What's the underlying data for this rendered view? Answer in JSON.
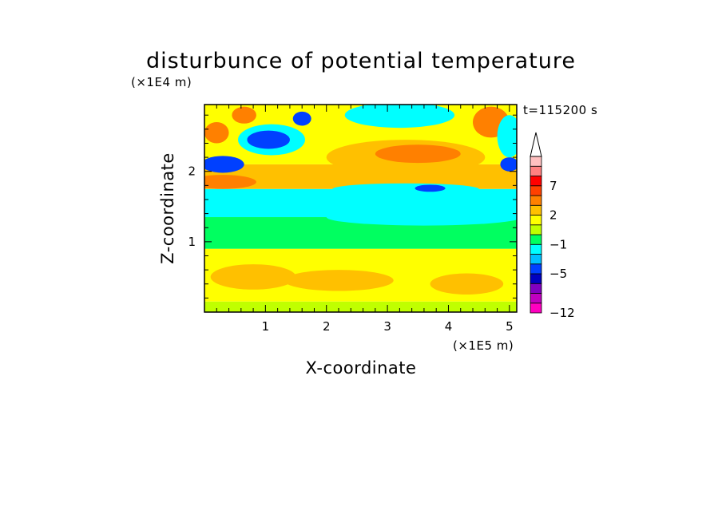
{
  "chart_data": {
    "type": "heatmap",
    "title": "disturbunce of potential temperature",
    "time_label": "t=115200 s",
    "xlabel": "X-coordinate",
    "ylabel": "Z-coordinate",
    "x_scale_label": "(×1E5 m)",
    "y_scale_label": "(×1E4 m)",
    "xlim": [
      0,
      5.12
    ],
    "ylim": [
      0,
      2.95
    ],
    "x_ticks": [
      1,
      2,
      3,
      4,
      5
    ],
    "y_ticks": [
      1,
      2
    ],
    "colorbar": {
      "levels": [
        -12,
        -11,
        -9,
        -7,
        -5,
        -4,
        -3,
        -1,
        0,
        1,
        2,
        3,
        5,
        7,
        9,
        11
      ],
      "tick_labels": [
        "7",
        "2",
        "−1",
        "−5",
        "−12"
      ],
      "tick_values": [
        7,
        2,
        -1,
        -5,
        -12
      ],
      "colors": [
        "#ff00c0",
        "#c000c0",
        "#8000c0",
        "#0000c0",
        "#0040ff",
        "#00c0ff",
        "#00ffff",
        "#00ff60",
        "#c0ff00",
        "#ffff00",
        "#ffc000",
        "#ff8000",
        "#ff4000",
        "#ff0000",
        "#ff8080",
        "#ffc0c0"
      ],
      "extend": "max"
    },
    "layers": [
      {
        "z": [
          0.0,
          0.15
        ],
        "value": 0.5
      },
      {
        "z": [
          0.15,
          0.9
        ],
        "value": 1.5
      },
      {
        "z": [
          0.9,
          1.35
        ],
        "value": -0.5
      },
      {
        "z": [
          1.35,
          1.75
        ],
        "value": -1.5
      },
      {
        "z": [
          1.75,
          2.1
        ],
        "value": 2.5
      },
      {
        "z": [
          2.1,
          2.95
        ],
        "value": 1.5
      }
    ],
    "features": [
      {
        "x": 0.8,
        "z": 0.5,
        "rx": 0.7,
        "rz": 0.18,
        "value": 2.5
      },
      {
        "x": 2.2,
        "z": 0.45,
        "rx": 0.9,
        "rz": 0.15,
        "value": 2.5
      },
      {
        "x": 4.3,
        "z": 0.4,
        "rx": 0.6,
        "rz": 0.15,
        "value": 2.5
      },
      {
        "x": 3.6,
        "z": 1.35,
        "rx": 1.6,
        "rz": 0.12,
        "value": -1.5
      },
      {
        "x": 3.3,
        "z": 2.2,
        "rx": 1.3,
        "rz": 0.25,
        "value": 2.5
      },
      {
        "x": 3.5,
        "z": 2.25,
        "rx": 0.7,
        "rz": 0.13,
        "value": 4
      },
      {
        "x": 3.3,
        "z": 1.75,
        "rx": 1.2,
        "rz": 0.08,
        "value": -1.5
      },
      {
        "x": 3.7,
        "z": 1.76,
        "rx": 0.25,
        "rz": 0.05,
        "value": -4.5
      },
      {
        "x": 3.2,
        "z": 2.8,
        "rx": 0.9,
        "rz": 0.18,
        "value": -1.5
      },
      {
        "x": 1.1,
        "z": 2.45,
        "rx": 0.55,
        "rz": 0.22,
        "value": -1.5
      },
      {
        "x": 1.05,
        "z": 2.45,
        "rx": 0.35,
        "rz": 0.13,
        "value": -4.5
      },
      {
        "x": 1.6,
        "z": 2.75,
        "rx": 0.15,
        "rz": 0.1,
        "value": -4.5
      },
      {
        "x": 0.3,
        "z": 2.1,
        "rx": 0.35,
        "rz": 0.12,
        "value": -4.5
      },
      {
        "x": 0.3,
        "z": 1.85,
        "rx": 0.55,
        "rz": 0.1,
        "value": 4
      },
      {
        "x": 0.2,
        "z": 2.55,
        "rx": 0.2,
        "rz": 0.15,
        "value": 4
      },
      {
        "x": 0.65,
        "z": 2.8,
        "rx": 0.2,
        "rz": 0.12,
        "value": 4
      },
      {
        "x": 5.0,
        "z": 2.1,
        "rx": 0.15,
        "rz": 0.1,
        "value": -4.5
      },
      {
        "x": 4.7,
        "z": 2.7,
        "rx": 0.3,
        "rz": 0.22,
        "value": 4
      },
      {
        "x": 5.0,
        "z": 2.5,
        "rx": 0.2,
        "rz": 0.3,
        "value": -1.5
      }
    ]
  }
}
